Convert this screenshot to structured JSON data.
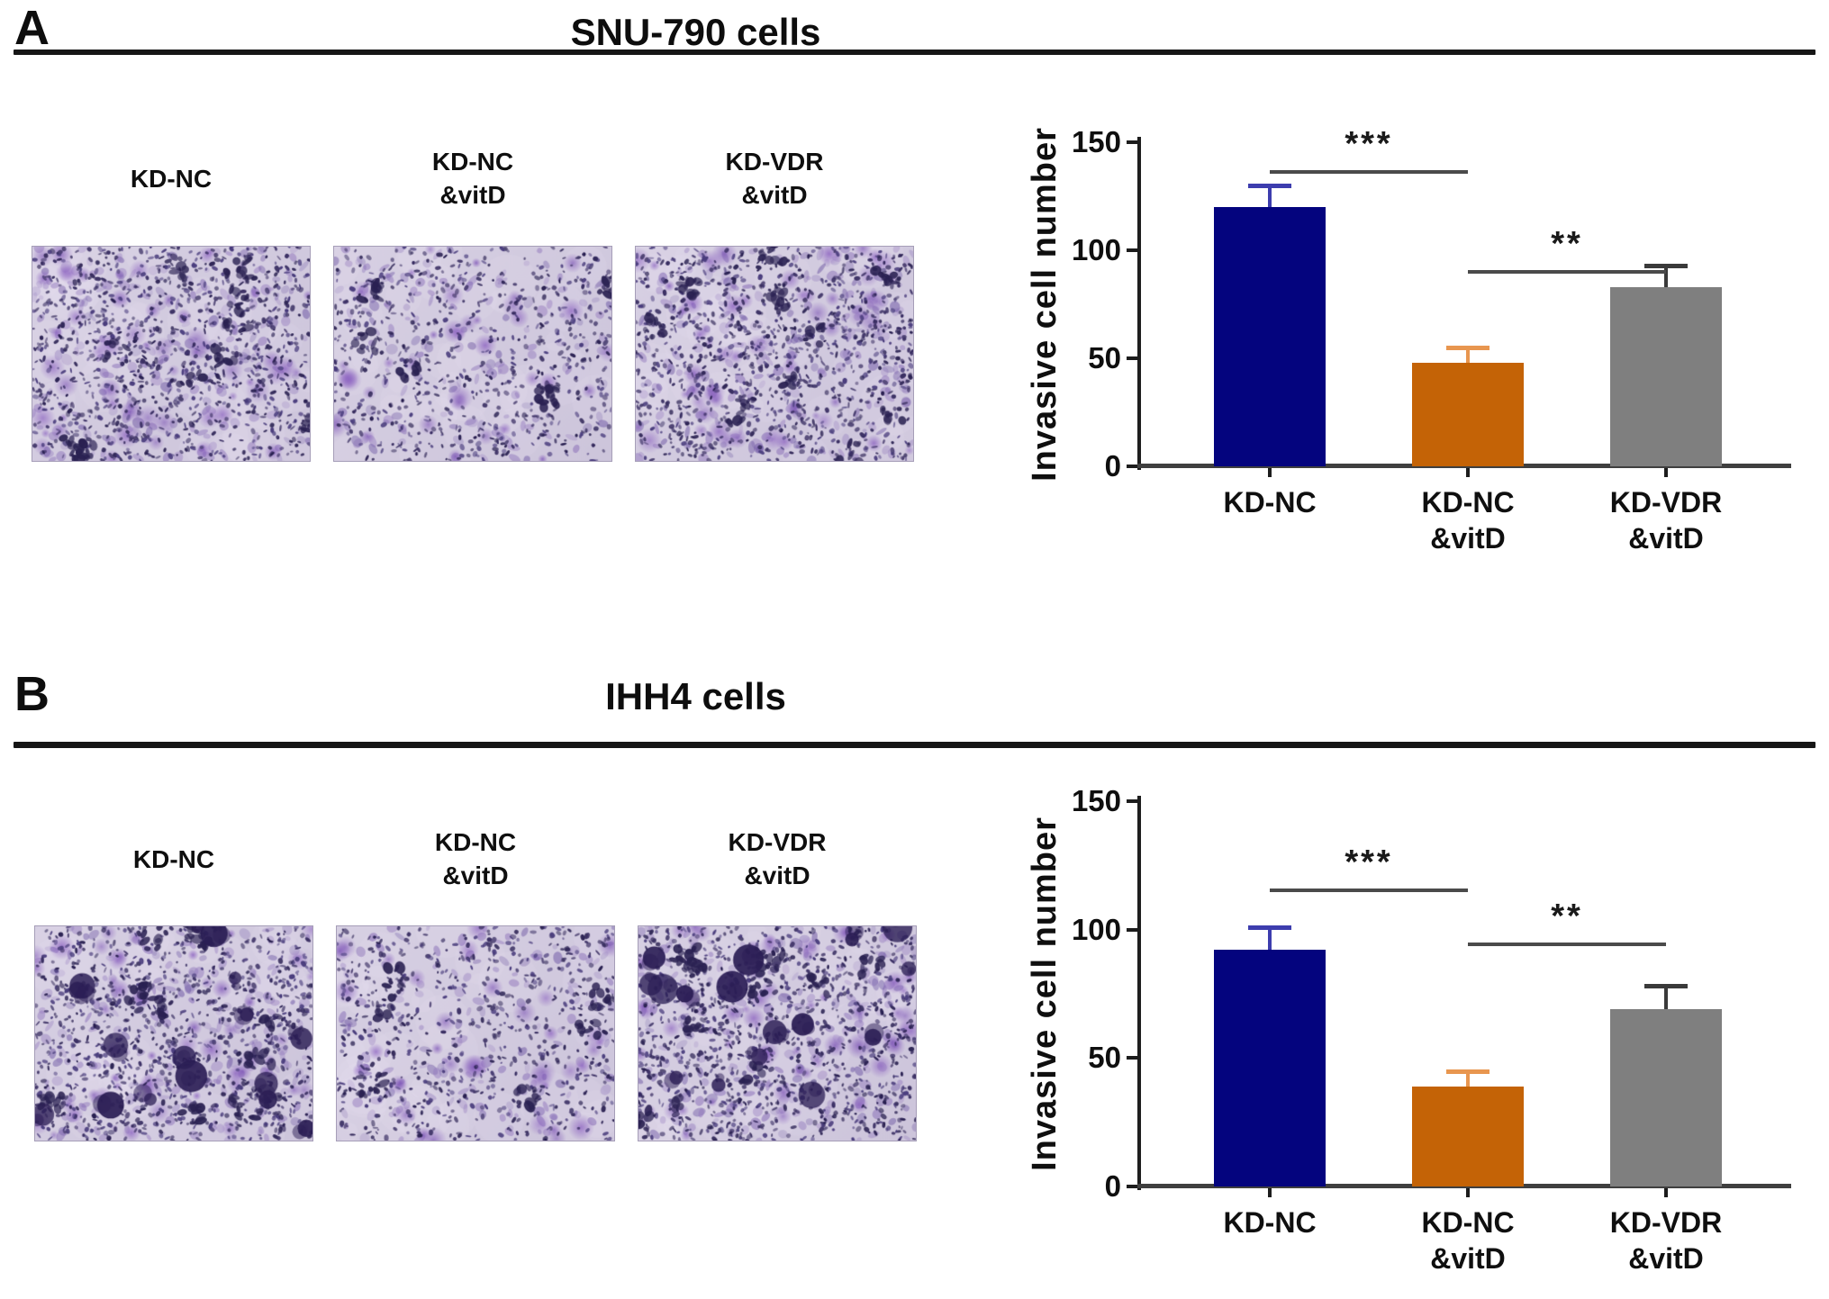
{
  "figure": {
    "panels": [
      {
        "letter": "A",
        "title": "SNU-790 cells",
        "images": [
          {
            "label_lines": [
              "KD-NC"
            ],
            "density": "high",
            "blobby": false
          },
          {
            "label_lines": [
              "KD-NC",
              "&vitD"
            ],
            "density": "medium",
            "blobby": false
          },
          {
            "label_lines": [
              "KD-VDR",
              "&vitD"
            ],
            "density": "high",
            "blobby": false
          }
        ]
      },
      {
        "letter": "B",
        "title": "IHH4 cells",
        "images": [
          {
            "label_lines": [
              "KD-NC"
            ],
            "density": "high",
            "blobby": true
          },
          {
            "label_lines": [
              "KD-NC",
              "&vitD"
            ],
            "density": "medium",
            "blobby": false
          },
          {
            "label_lines": [
              "KD-VDR",
              "&vitD"
            ],
            "density": "high",
            "blobby": true
          }
        ]
      }
    ],
    "microscopy": {
      "background": "#CDC5DB",
      "background_light": "#D7D0E3",
      "stain_dark": [
        "#2A2152",
        "#3A2F63",
        "#4A3D7D"
      ],
      "stain_mid": [
        "#6E57A4",
        "#8266B4",
        "#9277BD"
      ],
      "stain_bright": [
        "#8A5FC0",
        "#7B52B5"
      ]
    }
  },
  "chart_data": [
    {
      "type": "bar",
      "title": "SNU-790 cells",
      "categories": [
        "KD-NC",
        "KD-NC\n&vitD",
        "KD-VDR\n&vitD"
      ],
      "values": [
        120,
        48,
        83
      ],
      "errors_plus": [
        10,
        7,
        10
      ],
      "bar_colors": [
        "#04047E",
        "#C46306",
        "#7F7F7F"
      ],
      "error_colors": [
        "#3D3DAE",
        "#E8964F",
        "#3A3A3A"
      ],
      "ylabel": "Invasive cell number",
      "xlabel": "",
      "ylim": [
        0,
        150
      ],
      "yticks": [
        0,
        50,
        100,
        150
      ],
      "grid": false,
      "legend": "none",
      "axis_color": "#1D1D1D",
      "sig_color": "#4A4A4A",
      "significance": [
        {
          "between": [
            0,
            1
          ],
          "label": "***",
          "line_y": 137
        },
        {
          "between": [
            1,
            2
          ],
          "label": "**",
          "line_y": 91
        }
      ]
    },
    {
      "type": "bar",
      "title": "IHH4 cells",
      "categories": [
        "KD-NC",
        "KD-NC\n&vitD",
        "KD-VDR\n&vitD"
      ],
      "values": [
        92,
        39,
        69
      ],
      "errors_plus": [
        9,
        6,
        9
      ],
      "bar_colors": [
        "#04047E",
        "#C46306",
        "#7F7F7F"
      ],
      "error_colors": [
        "#3D3DAE",
        "#E8964F",
        "#3A3A3A"
      ],
      "ylabel": "Invasive cell number",
      "xlabel": "",
      "ylim": [
        0,
        150
      ],
      "yticks": [
        0,
        50,
        100,
        150
      ],
      "grid": false,
      "legend": "none",
      "axis_color": "#1D1D1D",
      "sig_color": "#4A4A4A",
      "significance": [
        {
          "between": [
            0,
            1
          ],
          "label": "***",
          "line_y": 116
        },
        {
          "between": [
            1,
            2
          ],
          "label": "**",
          "line_y": 95
        }
      ]
    }
  ]
}
